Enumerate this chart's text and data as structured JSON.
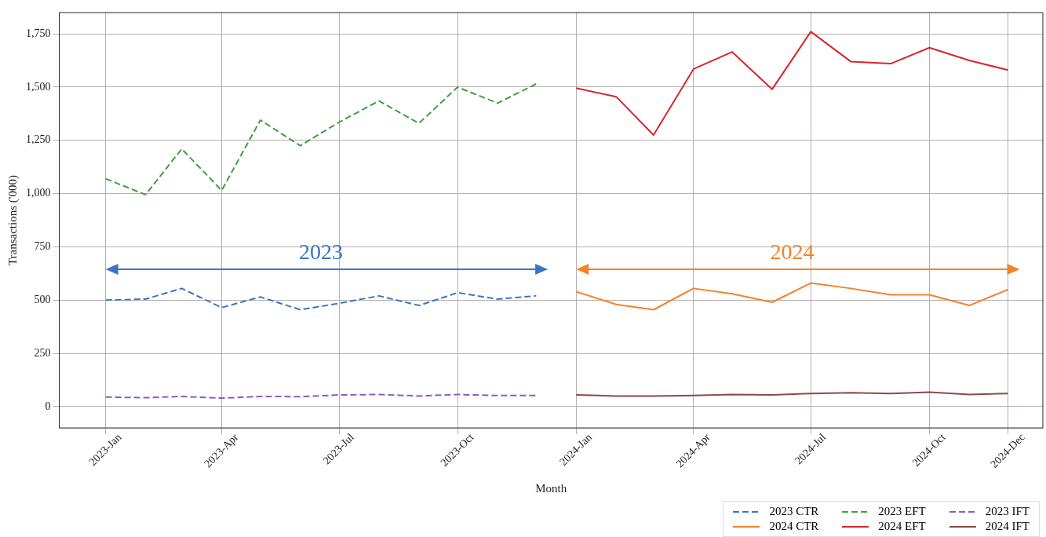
{
  "chart_data": {
    "type": "line",
    "xlabel": "Month",
    "ylabel": "Transactions ('000)",
    "x": [
      "2023-01",
      "2023-02",
      "2023-03",
      "2023-04",
      "2023-05",
      "2023-06",
      "2023-07",
      "2023-08",
      "2023-09",
      "2023-10",
      "2023-11",
      "2023-12"
    ],
    "series": [
      {
        "name": "2023 CTR",
        "color": "#3a75c4",
        "line_style": "dashed",
        "values": [
          500,
          505,
          555,
          465,
          515,
          455,
          485,
          520,
          475,
          535,
          505,
          520
        ]
      },
      {
        "name": "2023 EFT",
        "color": "#3fa03f",
        "line_style": "dashed",
        "values": [
          1070,
          995,
          1210,
          1015,
          1345,
          1225,
          1335,
          1435,
          1330,
          1500,
          1425,
          1515
        ]
      },
      {
        "name": "2023 IFT",
        "color": "#8a5cc0",
        "line_style": "dashed",
        "values": [
          45,
          42,
          48,
          40,
          48,
          47,
          55,
          57,
          50,
          57,
          52,
          52
        ]
      },
      {
        "name": "2024 CTR",
        "color": "#f5822a",
        "line_style": "solid",
        "x": [
          "2024-01",
          "2024-02",
          "2024-03",
          "2024-04",
          "2024-05",
          "2024-06",
          "2024-07",
          "2024-08",
          "2024-09",
          "2024-10",
          "2024-11",
          "2024-12"
        ],
        "values": [
          540,
          480,
          455,
          555,
          530,
          490,
          580,
          555,
          525,
          525,
          475,
          550
        ]
      },
      {
        "name": "2024 EFT",
        "color": "#d6262e",
        "line_style": "solid",
        "x": [
          "2024-01",
          "2024-02",
          "2024-03",
          "2024-04",
          "2024-05",
          "2024-06",
          "2024-07",
          "2024-08",
          "2024-09",
          "2024-10",
          "2024-11",
          "2024-12"
        ],
        "values": [
          1495,
          1455,
          1275,
          1585,
          1665,
          1490,
          1760,
          1620,
          1610,
          1685,
          1625,
          1580
        ]
      },
      {
        "name": "2024 IFT",
        "color": "#8c4a48",
        "line_style": "solid",
        "x": [
          "2024-01",
          "2024-02",
          "2024-03",
          "2024-04",
          "2024-05",
          "2024-06",
          "2024-07",
          "2024-08",
          "2024-09",
          "2024-10",
          "2024-11",
          "2024-12"
        ],
        "values": [
          55,
          50,
          50,
          52,
          57,
          55,
          62,
          65,
          62,
          68,
          57,
          62
        ]
      }
    ],
    "xlim": [
      "2022-11-26",
      "2024-12-28"
    ],
    "xticks": [
      {
        "value": "2023-01",
        "label": "2023-Jan"
      },
      {
        "value": "2023-04",
        "label": "2023-Apr"
      },
      {
        "value": "2023-07",
        "label": "2023-Jul"
      },
      {
        "value": "2023-10",
        "label": "2023-Oct"
      },
      {
        "value": "2024-01",
        "label": "2024-Jan"
      },
      {
        "value": "2024-04",
        "label": "2024-Apr"
      },
      {
        "value": "2024-07",
        "label": "2024-Jul"
      },
      {
        "value": "2024-10",
        "label": "2024-Oct"
      },
      {
        "value": "2024-12",
        "label": "2024-Dec"
      }
    ],
    "ylim": [
      -100,
      1850
    ],
    "yticks": [
      0,
      {
        "value": 250,
        "label": "250"
      },
      {
        "value": 500,
        "label": "500"
      },
      {
        "value": 750,
        "label": "750"
      },
      {
        "value": 1000,
        "label": "1,000"
      },
      {
        "value": 1250,
        "label": "1,250"
      },
      {
        "value": 1500,
        "label": "1,500"
      },
      {
        "value": 1750,
        "label": "1,750"
      }
    ],
    "annotations": [
      "2023",
      "2024"
    ],
    "grid": true,
    "legend": "bottom right",
    "marker": "none"
  }
}
